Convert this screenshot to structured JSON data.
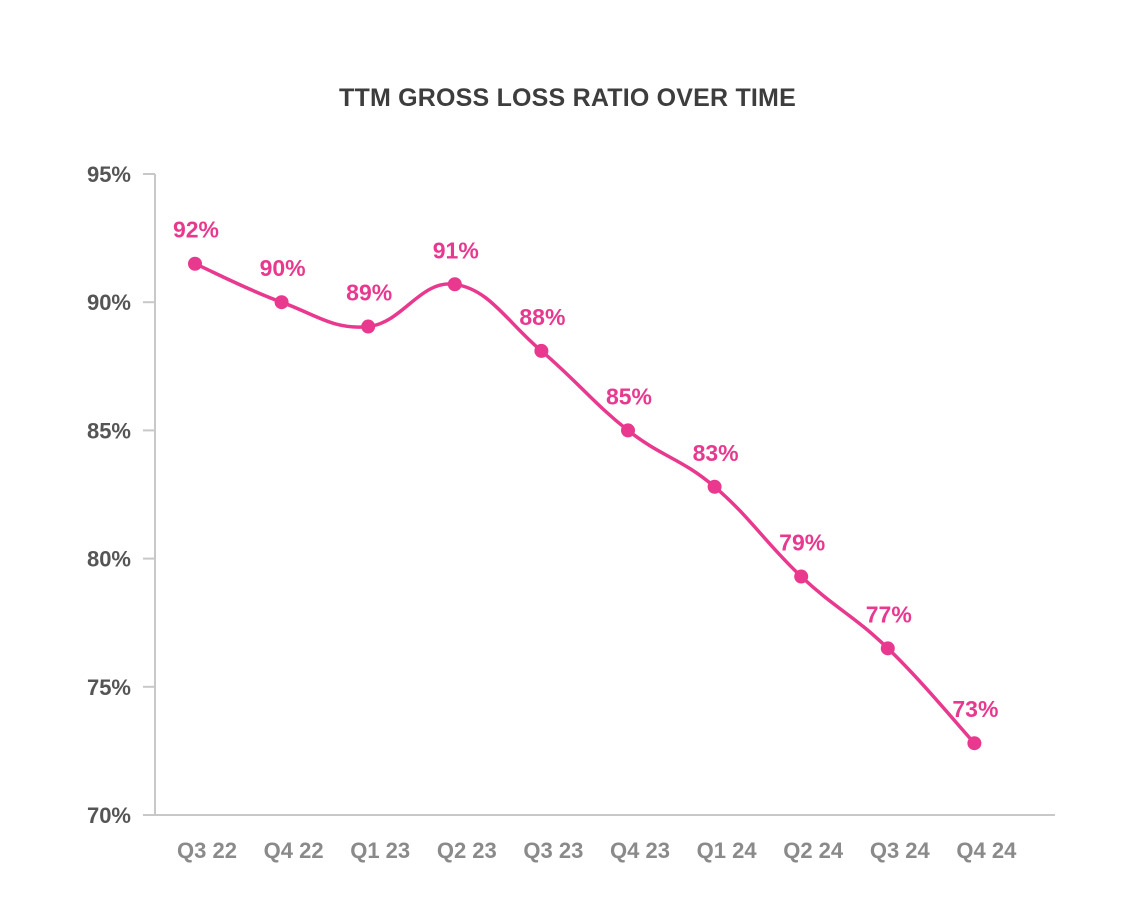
{
  "chart_data": {
    "type": "line",
    "title": "TTM GROSS LOSS RATIO OVER TIME",
    "xlabel": "",
    "ylabel": "",
    "categories": [
      "Q3 22",
      "Q4 22",
      "Q1 23",
      "Q2 23",
      "Q3 23",
      "Q4 23",
      "Q1 24",
      "Q2 24",
      "Q3 24",
      "Q4 24"
    ],
    "series": [
      {
        "values": [
          91.5,
          90.0,
          89.05,
          90.7,
          88.1,
          85.0,
          82.8,
          79.3,
          76.5,
          72.8
        ],
        "data_labels": [
          "92%",
          "90%",
          "89%",
          "91%",
          "88%",
          "85%",
          "83%",
          "79%",
          "77%",
          "73%"
        ]
      }
    ],
    "ylim": [
      70,
      95
    ],
    "yticks": [
      70,
      75,
      80,
      85,
      90,
      95
    ],
    "ytick_labels": [
      "70%",
      "75%",
      "80%",
      "85%",
      "90%",
      "95%"
    ],
    "grid": false,
    "line_style": "smooth",
    "colors": {
      "series": "#e8398f",
      "axis": "#c8c8c8",
      "title": "#3d3d3d"
    }
  }
}
